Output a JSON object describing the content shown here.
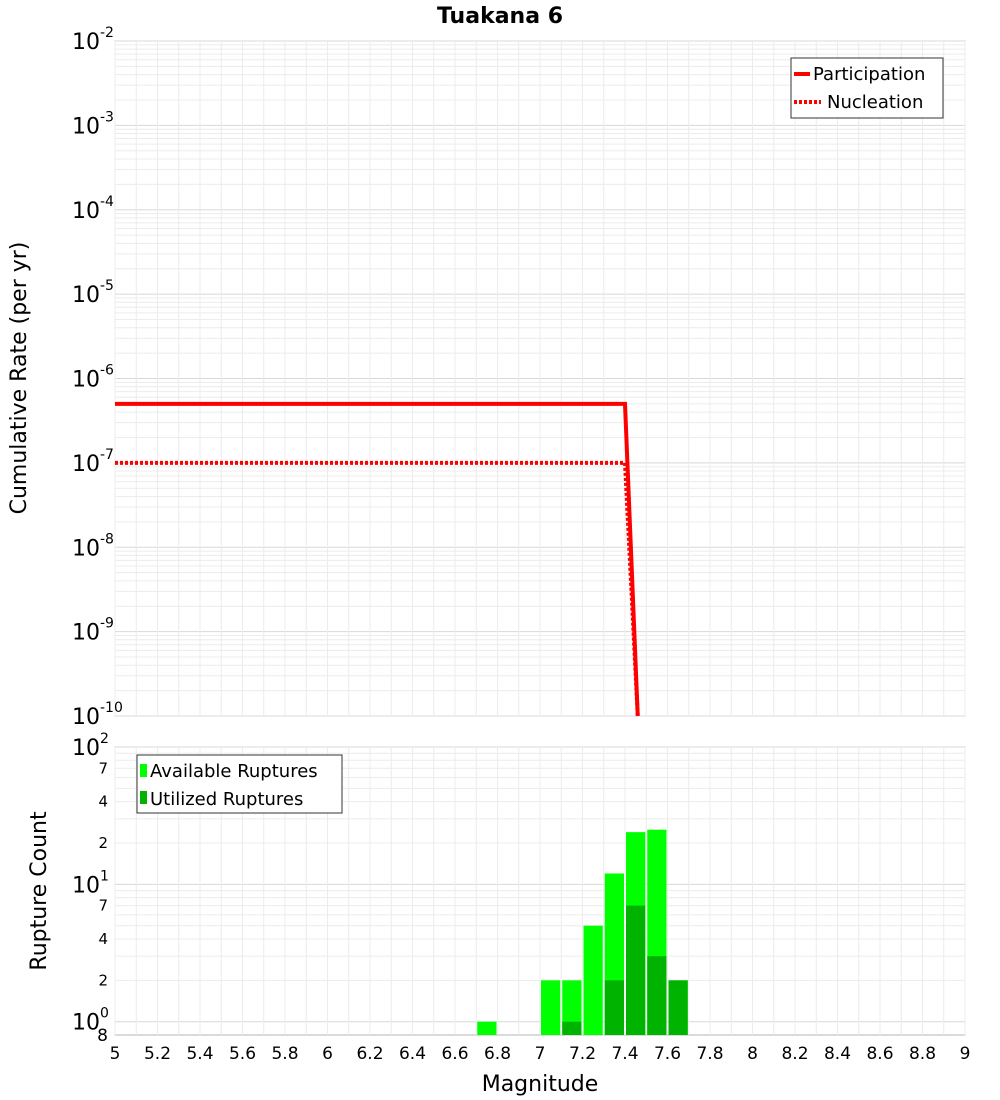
{
  "chart_data": [
    {
      "type": "line",
      "title": "Tuakana 6",
      "ylabel": "Cumulative Rate (per yr)",
      "xlabel": "",
      "xlim": [
        5,
        9
      ],
      "ylim": [
        1e-10,
        0.01
      ],
      "yscale": "log",
      "grid": true,
      "legend_position": "top-right",
      "y_ticks": [
        {
          "base": "10",
          "exp": "-10"
        },
        {
          "base": "10",
          "exp": "-9"
        },
        {
          "base": "10",
          "exp": "-8"
        },
        {
          "base": "10",
          "exp": "-7"
        },
        {
          "base": "10",
          "exp": "-6"
        },
        {
          "base": "10",
          "exp": "-5"
        },
        {
          "base": "10",
          "exp": "-4"
        },
        {
          "base": "10",
          "exp": "-3"
        },
        {
          "base": "10",
          "exp": "-2"
        }
      ],
      "series": [
        {
          "name": "Participation",
          "style": "solid",
          "color": "#ff0000",
          "x": [
            5,
            7.4,
            7.46
          ],
          "y": [
            5e-07,
            5e-07,
            1e-10
          ]
        },
        {
          "name": "Nucleation",
          "style": "dotted",
          "color": "#ff0000",
          "x": [
            5,
            7.4,
            7.46
          ],
          "y": [
            1e-07,
            1e-07,
            1e-10
          ]
        }
      ]
    },
    {
      "type": "bar",
      "xlabel": "Magnitude",
      "ylabel": "Rupture Count",
      "xlim": [
        5,
        9
      ],
      "ylim": [
        0.8,
        100
      ],
      "yscale": "log",
      "grid": true,
      "legend_position": "top-left",
      "bin_width": 0.1,
      "x_ticks": [
        "5",
        "5.2",
        "5.4",
        "5.6",
        "5.8",
        "6",
        "6.2",
        "6.4",
        "6.6",
        "6.8",
        "7",
        "7.2",
        "7.4",
        "7.6",
        "7.8",
        "8",
        "8.2",
        "8.4",
        "8.6",
        "8.8",
        "9"
      ],
      "y_major_ticks": [
        {
          "base": "10",
          "exp": "0"
        },
        {
          "base": "10",
          "exp": "1"
        },
        {
          "base": "10",
          "exp": "2"
        }
      ],
      "y_minor_ticks": [
        {
          "label": "8",
          "value": 0.8
        },
        {
          "label": "2",
          "value": 2
        },
        {
          "label": "4",
          "value": 4
        },
        {
          "label": "7",
          "value": 7
        },
        {
          "label": "2",
          "value": 20
        },
        {
          "label": "4",
          "value": 40
        },
        {
          "label": "7",
          "value": 70
        }
      ],
      "series": [
        {
          "name": "Available Ruptures",
          "color": "#00ff00",
          "x": [
            6.75,
            7.05,
            7.15,
            7.25,
            7.35,
            7.45,
            7.55,
            7.65
          ],
          "values": [
            1,
            2,
            2,
            5,
            12,
            24,
            25,
            2
          ]
        },
        {
          "name": "Utilized Ruptures",
          "color": "#00b300",
          "x": [
            7.15,
            7.35,
            7.45,
            7.55,
            7.65
          ],
          "values": [
            1,
            2,
            7,
            3,
            2
          ]
        }
      ]
    }
  ]
}
